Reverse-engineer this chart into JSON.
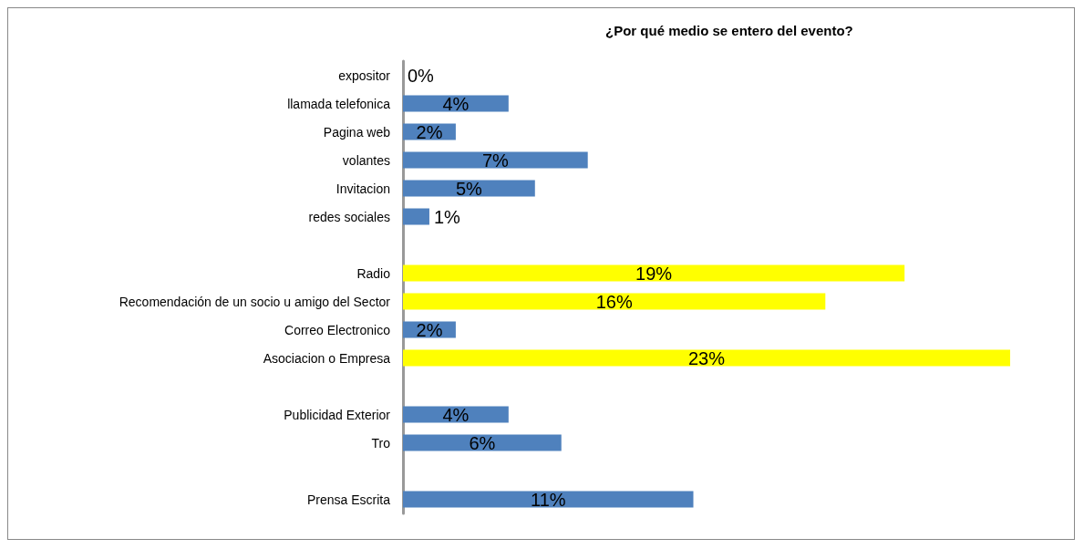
{
  "chart_data": {
    "type": "bar",
    "orientation": "horizontal",
    "title": "¿Por qué medio se entero del evento?",
    "categories": [
      "expositor",
      "llamada telefonica",
      "Pagina web",
      "volantes",
      "Invitacion",
      "redes sociales",
      null,
      "Radio",
      "Recomendación de un socio u amigo del Sector",
      "Correo Electronico",
      "Asociacion o Empresa",
      null,
      "Publicidad Exterior",
      "Tro",
      null,
      "Prensa Escrita"
    ],
    "values": [
      0,
      4,
      2,
      7,
      5,
      1,
      null,
      19,
      16,
      2,
      23,
      null,
      4,
      6,
      null,
      11
    ],
    "value_labels": [
      "0%",
      "4%",
      "2%",
      "7%",
      "5%",
      "1%",
      null,
      "19%",
      "16%",
      "2%",
      "23%",
      null,
      "4%",
      "6%",
      null,
      "11%"
    ],
    "colors": [
      "#4f81bd",
      "#4f81bd",
      "#4f81bd",
      "#4f81bd",
      "#4f81bd",
      "#4f81bd",
      null,
      "#ffff00",
      "#ffff00",
      "#4f81bd",
      "#ffff00",
      null,
      "#4f81bd",
      "#4f81bd",
      null,
      "#4f81bd"
    ]
  }
}
